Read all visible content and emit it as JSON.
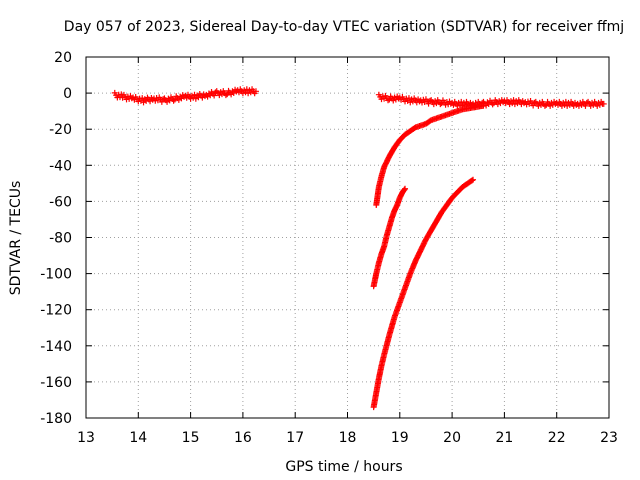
{
  "chart_data": {
    "type": "scatter",
    "title": "Day 057 of 2023, Sidereal Day-to-day VTEC variation (SDTVAR) for receiver ffmj",
    "xlabel": "GPS time / hours",
    "ylabel": "SDTVAR / TECUs",
    "xlim": [
      13,
      23
    ],
    "ylim": [
      -180,
      20
    ],
    "x_ticks": [
      13,
      14,
      15,
      16,
      17,
      18,
      19,
      20,
      21,
      22,
      23
    ],
    "y_ticks": [
      -180,
      -160,
      -140,
      -120,
      -100,
      -80,
      -60,
      -40,
      -20,
      0,
      20
    ],
    "grid": true,
    "marker": "plus",
    "color": "#ff0000",
    "series": [
      {
        "x": [
          13.55,
          13.7,
          13.9,
          14.1,
          14.3,
          14.5,
          14.7,
          14.9,
          15.1,
          15.3,
          15.5,
          15.7,
          15.9,
          16.1,
          16.25
        ],
        "y": [
          -1,
          -2,
          -3,
          -4,
          -3,
          -4,
          -3,
          -2,
          -2,
          -1,
          0,
          0,
          1,
          1,
          1
        ]
      },
      {
        "x": [
          18.6,
          18.8,
          19.0,
          19.2,
          19.4,
          19.6,
          19.8,
          20.0,
          20.2,
          20.4,
          20.6,
          20.8,
          21.0,
          21.2,
          21.4,
          21.6,
          21.8,
          22.0,
          22.2,
          22.4,
          22.6,
          22.9
        ],
        "y": [
          -2,
          -3,
          -3,
          -4,
          -4,
          -5,
          -5,
          -6,
          -6,
          -6,
          -6,
          -5,
          -5,
          -5,
          -5,
          -6,
          -6,
          -6,
          -6,
          -6,
          -6,
          -6
        ]
      },
      {
        "x": [
          18.55,
          18.6,
          18.65,
          18.7,
          18.8,
          18.9,
          19.0,
          19.1,
          19.2,
          19.3,
          19.4,
          19.5,
          19.6,
          19.7,
          19.8,
          19.9,
          20.0,
          20.2,
          20.4,
          20.6
        ],
        "y": [
          -62,
          -52,
          -46,
          -41,
          -35,
          -30,
          -26,
          -23,
          -21,
          -19,
          -18,
          -17,
          -15,
          -14,
          -13,
          -12,
          -11,
          -9,
          -8,
          -7
        ]
      },
      {
        "x": [
          18.5,
          18.55,
          18.6,
          18.65,
          18.7,
          18.75,
          18.8,
          18.85,
          18.9,
          18.95,
          19.0,
          19.05,
          19.1
        ],
        "y": [
          -107,
          -100,
          -94,
          -89,
          -85,
          -79,
          -74,
          -69,
          -65,
          -62,
          -58,
          -55,
          -53
        ]
      },
      {
        "x": [
          18.5,
          18.55,
          18.6,
          18.65,
          18.7,
          18.8,
          18.9,
          19.0,
          19.1,
          19.2,
          19.3,
          19.4,
          19.5,
          19.6,
          19.7,
          19.8,
          19.9,
          20.0,
          20.1,
          20.2,
          20.3,
          20.4
        ],
        "y": [
          -174,
          -166,
          -158,
          -151,
          -145,
          -134,
          -124,
          -116,
          -108,
          -100,
          -93,
          -87,
          -81,
          -76,
          -71,
          -66,
          -62,
          -58,
          -55,
          -52,
          -50,
          -48
        ]
      }
    ]
  }
}
